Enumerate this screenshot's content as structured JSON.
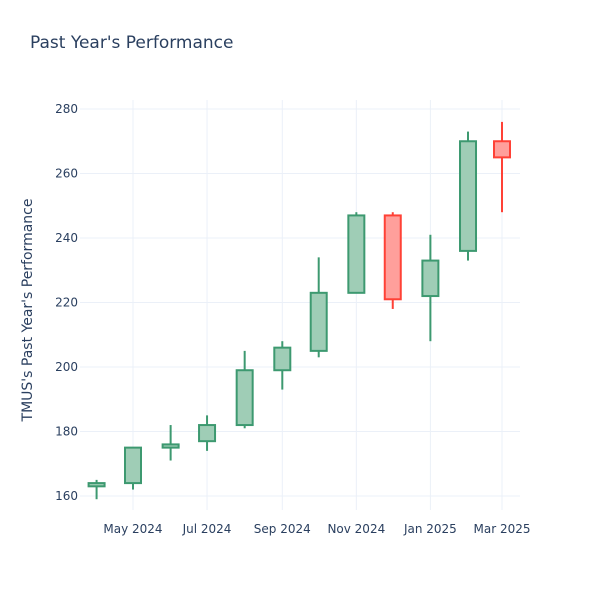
{
  "chart_data": {
    "type": "candlestick",
    "title": "Past Year's Performance",
    "ylabel": "TMUS's Past Year's Performance",
    "xlabel": "",
    "ylim": [
      153,
      283
    ],
    "yticks": [
      160,
      180,
      200,
      220,
      240,
      260,
      280
    ],
    "xticks": [
      {
        "label": "May 2024",
        "date": "2024-05-01"
      },
      {
        "label": "Jul 2024",
        "date": "2024-07-01"
      },
      {
        "label": "Sep 2024",
        "date": "2024-09-01"
      },
      {
        "label": "Nov 2024",
        "date": "2024-11-01"
      },
      {
        "label": "Jan 2025",
        "date": "2025-01-01"
      },
      {
        "label": "Mar 2025",
        "date": "2025-03-01"
      }
    ],
    "grid": true,
    "colors": {
      "increasing": "#3d9970",
      "increasing_fill": "#9fcdb6",
      "decreasing": "#ff4136",
      "decreasing_fill": "#ff9f9b"
    },
    "candles": [
      {
        "date": "2024-04-01",
        "open": 163,
        "high": 165,
        "low": 159,
        "close": 164
      },
      {
        "date": "2024-05-01",
        "open": 164,
        "high": 175,
        "low": 162,
        "close": 175
      },
      {
        "date": "2024-06-01",
        "open": 175,
        "high": 182,
        "low": 171,
        "close": 176
      },
      {
        "date": "2024-07-01",
        "open": 177,
        "high": 185,
        "low": 174,
        "close": 182
      },
      {
        "date": "2024-08-01",
        "open": 182,
        "high": 205,
        "low": 181,
        "close": 199
      },
      {
        "date": "2024-09-01",
        "open": 199,
        "high": 208,
        "low": 193,
        "close": 206
      },
      {
        "date": "2024-10-01",
        "open": 205,
        "high": 234,
        "low": 203,
        "close": 223
      },
      {
        "date": "2024-11-01",
        "open": 223,
        "high": 248,
        "low": 223,
        "close": 247
      },
      {
        "date": "2024-12-01",
        "open": 247,
        "high": 248,
        "low": 218,
        "close": 221
      },
      {
        "date": "2025-01-01",
        "open": 222,
        "high": 241,
        "low": 208,
        "close": 233
      },
      {
        "date": "2025-02-01",
        "open": 236,
        "high": 273,
        "low": 233,
        "close": 270
      },
      {
        "date": "2025-03-01",
        "open": 270,
        "high": 276,
        "low": 248,
        "close": 265
      }
    ]
  }
}
